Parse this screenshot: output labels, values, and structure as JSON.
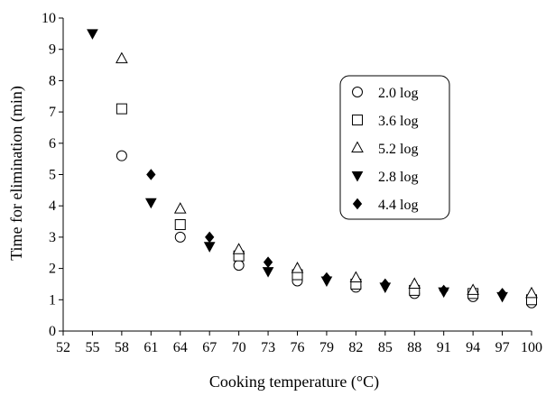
{
  "chart_data": {
    "type": "scatter",
    "xlabel": "Cooking temperature (°C)",
    "ylabel": "Time for elimination (min)",
    "xlim": [
      52,
      100
    ],
    "ylim": [
      0,
      10
    ],
    "xticks": [
      52,
      55,
      58,
      61,
      64,
      67,
      70,
      73,
      76,
      79,
      82,
      85,
      88,
      91,
      94,
      97,
      100
    ],
    "yticks": [
      0,
      1,
      2,
      3,
      4,
      5,
      6,
      7,
      8,
      9,
      10
    ],
    "grid": false,
    "legend_position": "top-right",
    "series": [
      {
        "name": "2.0 log",
        "marker": "circle-open",
        "points": [
          [
            58,
            5.6
          ],
          [
            64,
            3.0
          ],
          [
            70,
            2.1
          ],
          [
            76,
            1.6
          ],
          [
            82,
            1.4
          ],
          [
            88,
            1.2
          ],
          [
            94,
            1.1
          ],
          [
            100,
            0.9
          ]
        ]
      },
      {
        "name": "3.6 log",
        "marker": "square-open",
        "points": [
          [
            58,
            7.1
          ],
          [
            64,
            3.4
          ],
          [
            70,
            2.4
          ],
          [
            76,
            1.8
          ],
          [
            82,
            1.5
          ],
          [
            88,
            1.3
          ],
          [
            94,
            1.2
          ],
          [
            100,
            1.0
          ]
        ]
      },
      {
        "name": "5.2 log",
        "marker": "triangle-up-open",
        "points": [
          [
            58,
            8.7
          ],
          [
            64,
            3.9
          ],
          [
            70,
            2.6
          ],
          [
            76,
            2.0
          ],
          [
            82,
            1.7
          ],
          [
            88,
            1.5
          ],
          [
            94,
            1.3
          ],
          [
            100,
            1.2
          ]
        ]
      },
      {
        "name": "2.8 log",
        "marker": "triangle-down-filled",
        "points": [
          [
            55,
            9.5
          ],
          [
            61,
            4.1
          ],
          [
            67,
            2.7
          ],
          [
            73,
            1.9
          ],
          [
            79,
            1.6
          ],
          [
            85,
            1.4
          ],
          [
            91,
            1.25
          ],
          [
            97,
            1.1
          ]
        ]
      },
      {
        "name": "4.4 log",
        "marker": "diamond-filled",
        "points": [
          [
            61,
            5.0
          ],
          [
            67,
            3.0
          ],
          [
            73,
            2.2
          ],
          [
            79,
            1.7
          ],
          [
            85,
            1.5
          ],
          [
            91,
            1.3
          ],
          [
            97,
            1.2
          ]
        ]
      }
    ]
  }
}
